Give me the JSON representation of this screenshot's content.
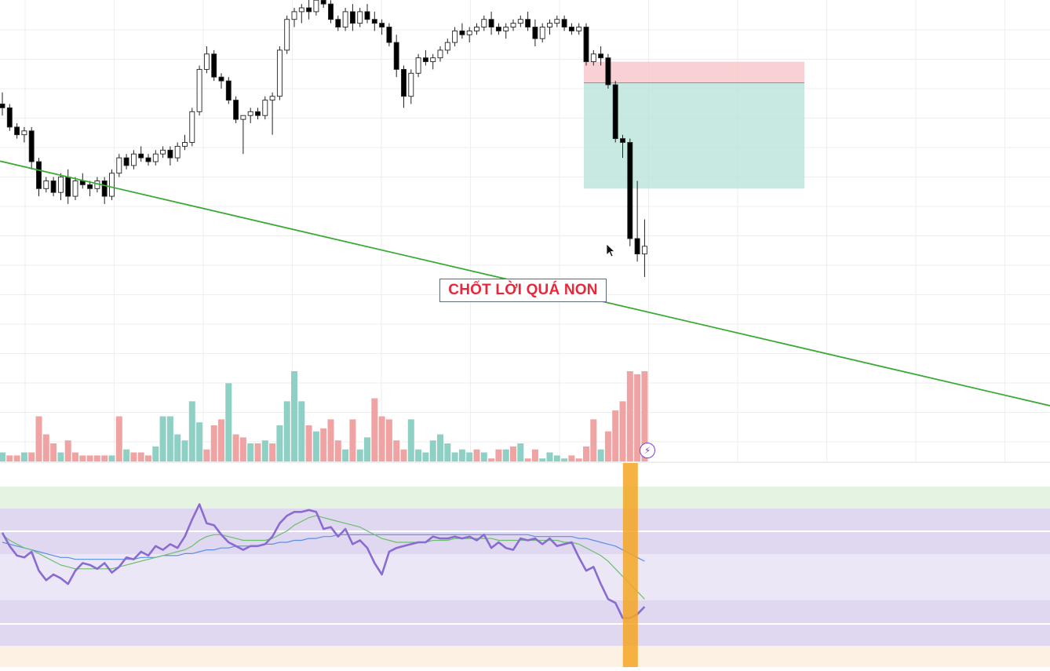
{
  "annotation": {
    "text": "CHỐT LỜI QUÁ NON",
    "color": "#e8283a"
  },
  "alert_badge": {
    "icon": "lightning-icon",
    "glyph": "⚡"
  },
  "colors": {
    "candle_up_body": "#ffffff",
    "candle_down_body": "#000000",
    "volume_up": "#8fd0c4",
    "volume_down": "#f0a3a3",
    "trendline": "#3aaa35",
    "stop_zone": "#f7c6c9",
    "target_zone": "#b5e0d8",
    "rsi_line": "#8a6bd1",
    "rsi_ma_fast": "#6cbf6a",
    "rsi_ma_slow": "#5b8fe6",
    "highlight": "#f5a623"
  },
  "chart_data": {
    "type": "candlestick",
    "title": "",
    "xlabel": "",
    "ylabel": "",
    "grid": true,
    "price_ylim": [
      0,
      100
    ],
    "candles": [
      [
        75,
        78,
        72,
        74
      ],
      [
        74,
        75,
        68,
        69
      ],
      [
        69,
        70,
        66,
        67
      ],
      [
        67,
        69,
        65,
        68
      ],
      [
        68,
        69,
        58,
        60
      ],
      [
        60,
        61,
        51,
        53
      ],
      [
        53,
        56,
        52,
        55
      ],
      [
        55,
        56,
        51,
        52
      ],
      [
        52,
        57,
        50,
        56
      ],
      [
        56,
        58,
        49,
        51
      ],
      [
        51,
        56,
        50,
        55
      ],
      [
        55,
        57,
        53,
        54
      ],
      [
        54,
        55,
        51,
        53
      ],
      [
        53,
        56,
        52,
        55
      ],
      [
        55,
        56,
        49,
        51
      ],
      [
        51,
        58,
        50,
        57
      ],
      [
        57,
        62,
        56,
        61
      ],
      [
        61,
        62,
        58,
        59
      ],
      [
        59,
        63,
        58,
        62
      ],
      [
        62,
        64,
        60,
        61
      ],
      [
        61,
        62,
        59,
        60
      ],
      [
        60,
        63,
        59,
        62
      ],
      [
        62,
        64,
        61,
        63
      ],
      [
        63,
        64,
        59,
        61
      ],
      [
        61,
        65,
        60,
        64
      ],
      [
        64,
        67,
        63,
        65
      ],
      [
        65,
        74,
        64,
        73
      ],
      [
        73,
        85,
        72,
        84
      ],
      [
        84,
        90,
        83,
        88
      ],
      [
        88,
        89,
        81,
        82
      ],
      [
        82,
        83,
        79,
        81
      ],
      [
        81,
        82,
        75,
        76
      ],
      [
        76,
        77,
        70,
        71
      ],
      [
        71,
        72,
        62,
        72
      ],
      [
        72,
        74,
        70,
        73
      ],
      [
        73,
        74,
        71,
        72
      ],
      [
        72,
        77,
        71,
        76
      ],
      [
        76,
        78,
        67,
        77
      ],
      [
        77,
        90,
        76,
        89
      ],
      [
        89,
        98,
        88,
        97
      ],
      [
        97,
        100,
        95,
        99
      ],
      [
        99,
        101,
        96,
        100
      ],
      [
        100,
        103,
        97,
        99
      ],
      [
        99,
        104,
        98,
        102
      ],
      [
        102,
        107,
        100,
        101
      ],
      [
        101,
        102,
        96,
        97
      ],
      [
        97,
        98,
        94,
        95
      ],
      [
        95,
        100,
        94,
        99
      ],
      [
        99,
        101,
        94,
        96
      ],
      [
        96,
        100,
        95,
        99
      ],
      [
        99,
        101,
        96,
        97
      ],
      [
        97,
        99,
        94,
        96
      ],
      [
        96,
        97,
        93,
        95
      ],
      [
        95,
        96,
        90,
        91
      ],
      [
        91,
        93,
        82,
        84
      ],
      [
        84,
        85,
        74,
        77
      ],
      [
        77,
        84,
        75,
        83
      ],
      [
        83,
        88,
        82,
        87
      ],
      [
        87,
        89,
        85,
        86
      ],
      [
        86,
        88,
        84,
        87
      ],
      [
        87,
        90,
        86,
        89
      ],
      [
        89,
        92,
        88,
        91
      ],
      [
        91,
        95,
        90,
        94
      ],
      [
        94,
        96,
        92,
        93
      ],
      [
        93,
        95,
        91,
        94
      ],
      [
        94,
        96,
        93,
        95
      ],
      [
        95,
        98,
        94,
        97
      ],
      [
        97,
        99,
        93,
        95
      ],
      [
        95,
        96,
        93,
        94
      ],
      [
        94,
        96,
        92,
        95
      ],
      [
        95,
        97,
        94,
        96
      ],
      [
        96,
        98,
        95,
        97
      ],
      [
        97,
        99,
        94,
        95
      ],
      [
        95,
        97,
        90,
        92
      ],
      [
        92,
        96,
        91,
        95
      ],
      [
        95,
        97,
        93,
        96
      ],
      [
        96,
        98,
        95,
        97
      ],
      [
        97,
        98,
        94,
        95
      ],
      [
        95,
        96,
        93,
        94
      ],
      [
        94,
        96,
        93,
        95
      ],
      [
        95,
        96,
        85,
        86
      ],
      [
        86,
        89,
        85,
        88
      ],
      [
        88,
        90,
        85,
        87
      ],
      [
        87,
        88,
        79,
        80
      ],
      [
        80,
        81,
        65,
        66
      ],
      [
        66,
        67,
        61,
        65
      ],
      [
        65,
        66,
        38,
        40
      ],
      [
        40,
        55,
        34,
        36
      ],
      [
        36,
        45,
        30,
        38
      ]
    ],
    "volume": [
      3,
      2,
      2,
      3,
      3,
      15,
      9,
      6,
      3,
      7,
      3,
      2,
      2,
      2,
      2,
      2,
      15,
      4,
      3,
      3,
      2,
      5,
      15,
      15,
      9,
      7,
      20,
      13,
      4,
      12,
      14,
      26,
      9,
      8,
      6,
      6,
      7,
      6,
      12,
      20,
      30,
      20,
      12,
      10,
      11,
      14,
      7,
      4,
      14,
      4,
      8,
      21,
      15,
      14,
      7,
      4,
      14,
      4,
      3,
      7,
      9,
      6,
      3,
      4,
      3,
      4,
      3,
      1,
      4,
      4,
      5,
      6,
      1,
      4,
      1,
      3,
      2,
      1,
      2,
      1,
      5,
      14,
      4,
      10,
      17,
      20,
      30,
      29,
      30
    ],
    "volume_dir": [
      1,
      0,
      0,
      1,
      0,
      0,
      0,
      0,
      1,
      0,
      0,
      0,
      0,
      0,
      0,
      1,
      0,
      1,
      0,
      0,
      0,
      1,
      1,
      1,
      1,
      1,
      1,
      1,
      0,
      0,
      0,
      1,
      0,
      0,
      1,
      0,
      1,
      0,
      1,
      1,
      1,
      1,
      0,
      1,
      0,
      0,
      0,
      1,
      0,
      1,
      1,
      0,
      0,
      0,
      0,
      0,
      1,
      1,
      1,
      1,
      1,
      1,
      1,
      1,
      1,
      0,
      1,
      0,
      0,
      1,
      0,
      1,
      0,
      0,
      1,
      1,
      1,
      1,
      0,
      0,
      0,
      0,
      1,
      0,
      0,
      0,
      0,
      0,
      0
    ],
    "trendline": {
      "from": [
        0,
        60
      ],
      "to": [
        95,
        18
      ]
    },
    "position": {
      "entry": 80.5,
      "stop": 86,
      "target": 53,
      "start_index": 80,
      "end_index": 110
    },
    "highlight_index": 86,
    "rsi": {
      "ylim": [
        0,
        100
      ],
      "bands": [
        30,
        50,
        70
      ],
      "line": [
        75,
        68,
        63,
        62,
        65,
        55,
        50,
        53,
        51,
        48,
        55,
        59,
        58,
        56,
        59,
        54,
        57,
        62,
        61,
        65,
        63,
        68,
        66,
        69,
        67,
        73,
        82,
        90,
        80,
        79,
        74,
        70,
        68,
        66,
        68,
        68,
        69,
        73,
        80,
        84,
        86,
        86,
        87,
        86,
        77,
        78,
        73,
        77,
        69,
        71,
        67,
        59,
        53,
        65,
        67,
        68,
        69,
        70,
        70,
        73,
        72,
        72,
        73,
        72,
        73,
        71,
        74,
        67,
        70,
        67,
        66,
        72,
        71,
        72,
        69,
        72,
        68,
        69,
        70,
        62,
        55,
        57,
        48,
        40,
        38,
        30,
        30,
        32,
        36
      ],
      "ma_fast": [
        74,
        71,
        69,
        67,
        66,
        64,
        62,
        60,
        58,
        57,
        56,
        56,
        56,
        56,
        56,
        56,
        57,
        58,
        59,
        60,
        61,
        62,
        63,
        64,
        65,
        66,
        68,
        71,
        73,
        74,
        74,
        73,
        72,
        71,
        71,
        71,
        71,
        72,
        74,
        76,
        79,
        81,
        83,
        84,
        83,
        82,
        81,
        80,
        79,
        78,
        76,
        74,
        72,
        71,
        70,
        70,
        70,
        70,
        70,
        71,
        71,
        71,
        72,
        72,
        72,
        72,
        72,
        72,
        71,
        71,
        71,
        71,
        71,
        71,
        71,
        71,
        71,
        70,
        70,
        69,
        67,
        65,
        63,
        60,
        56,
        52,
        48,
        44,
        40
      ],
      "ma_slow": [
        70,
        69,
        68,
        67,
        66,
        65,
        64,
        63,
        62,
        62,
        61,
        61,
        61,
        61,
        61,
        61,
        61,
        61,
        61,
        62,
        62,
        62,
        63,
        63,
        63,
        64,
        64,
        65,
        66,
        66,
        67,
        67,
        68,
        68,
        68,
        68,
        69,
        69,
        70,
        70,
        71,
        71,
        72,
        72,
        73,
        73,
        74,
        74,
        74,
        74,
        74,
        74,
        74,
        74,
        74,
        74,
        74,
        74,
        74,
        74,
        74,
        74,
        74,
        74,
        74,
        74,
        74,
        74,
        74,
        74,
        74,
        74,
        74,
        73,
        73,
        73,
        73,
        73,
        73,
        72,
        72,
        71,
        70,
        69,
        68,
        66,
        64,
        62,
        60
      ]
    }
  }
}
